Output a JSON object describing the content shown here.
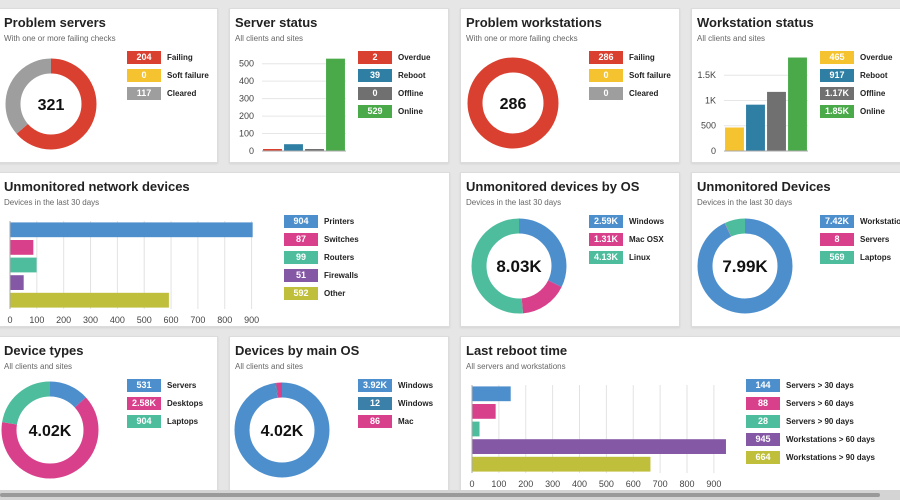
{
  "colors": {
    "red": "#d9402f",
    "yellow": "#f5c230",
    "gray": "#9e9e9e",
    "blue": "#4d8fcd",
    "green": "#4aaa4a",
    "teal": "#2f7fa5",
    "darkgray": "#707070",
    "pink": "#d9408c",
    "mint": "#4dbd9d",
    "purple": "#8558a5",
    "olive": "#bfbf3c",
    "steel": "#3a80a8"
  },
  "cards": {
    "problem_servers": {
      "title": "Problem servers",
      "subtitle": "With one or more failing checks",
      "center": "321",
      "legend": [
        {
          "value": "204",
          "label": "Failing"
        },
        {
          "value": "0",
          "label": "Soft failure"
        },
        {
          "value": "117",
          "label": "Cleared"
        }
      ]
    },
    "server_status": {
      "title": "Server status",
      "subtitle": "All clients and sites",
      "legend": [
        {
          "value": "2",
          "label": "Overdue"
        },
        {
          "value": "39",
          "label": "Reboot"
        },
        {
          "value": "0",
          "label": "Offline"
        },
        {
          "value": "529",
          "label": "Online"
        }
      ]
    },
    "problem_workstations": {
      "title": "Problem workstations",
      "subtitle": "With one or more failing checks",
      "center": "286",
      "legend": [
        {
          "value": "286",
          "label": "Failing"
        },
        {
          "value": "0",
          "label": "Soft failure"
        },
        {
          "value": "0",
          "label": "Cleared"
        }
      ]
    },
    "workstation_status": {
      "title": "Workstation status",
      "subtitle": "All clients and sites",
      "legend": [
        {
          "value": "465",
          "label": "Overdue"
        },
        {
          "value": "917",
          "label": "Reboot"
        },
        {
          "value": "1.17K",
          "label": "Offline"
        },
        {
          "value": "1.85K",
          "label": "Online"
        }
      ]
    },
    "unmonitored_network": {
      "title": "Unmonitored network devices",
      "subtitle": "Devices in the last 30 days",
      "legend": [
        {
          "value": "904",
          "label": "Printers"
        },
        {
          "value": "87",
          "label": "Switches"
        },
        {
          "value": "99",
          "label": "Routers"
        },
        {
          "value": "51",
          "label": "Firewalls"
        },
        {
          "value": "592",
          "label": "Other"
        }
      ]
    },
    "unmonitored_os": {
      "title": "Unmonitored devices by OS",
      "subtitle": "Devices in the last 30 days",
      "center": "8.03K",
      "legend": [
        {
          "value": "2.59K",
          "label": "Windows"
        },
        {
          "value": "1.31K",
          "label": "Mac OSX"
        },
        {
          "value": "4.13K",
          "label": "Linux"
        }
      ]
    },
    "unmonitored_devices": {
      "title": "Unmonitored Devices",
      "subtitle": "Devices in the last 30 days",
      "center": "7.99K",
      "legend": [
        {
          "value": "7.42K",
          "label": "Workstations"
        },
        {
          "value": "8",
          "label": "Servers"
        },
        {
          "value": "569",
          "label": "Laptops"
        }
      ]
    },
    "device_types": {
      "title": "Device types",
      "subtitle": "All clients and sites",
      "center": "4.02K",
      "legend": [
        {
          "value": "531",
          "label": "Servers"
        },
        {
          "value": "2.58K",
          "label": "Desktops"
        },
        {
          "value": "904",
          "label": "Laptops"
        }
      ]
    },
    "devices_main_os": {
      "title": "Devices by main OS",
      "subtitle": "All clients and sites",
      "center": "4.02K",
      "legend": [
        {
          "value": "3.92K",
          "label": "Windows"
        },
        {
          "value": "12",
          "label": "Windows"
        },
        {
          "value": "86",
          "label": "Mac"
        }
      ]
    },
    "last_reboot": {
      "title": "Last reboot time",
      "subtitle": "All servers and workstations",
      "legend": [
        {
          "value": "144",
          "label": "Servers > 30 days"
        },
        {
          "value": "88",
          "label": "Servers > 60 days"
        },
        {
          "value": "28",
          "label": "Servers > 90 days"
        },
        {
          "value": "945",
          "label": "Workstations > 60 days"
        },
        {
          "value": "664",
          "label": "Workstations > 90 days"
        }
      ]
    }
  },
  "chart_data": [
    {
      "id": "problem_servers",
      "type": "pie",
      "categories": [
        "Failing",
        "Soft failure",
        "Cleared"
      ],
      "values": [
        204,
        0,
        117
      ],
      "colors": [
        "red",
        "yellow",
        "gray"
      ]
    },
    {
      "id": "server_status",
      "type": "bar",
      "categories": [
        "Overdue",
        "Reboot",
        "Offline",
        "Online"
      ],
      "values": [
        2,
        39,
        0,
        529
      ],
      "colors": [
        "red",
        "teal",
        "darkgray",
        "green"
      ],
      "ylim": [
        0,
        550
      ],
      "yticks": [
        0,
        100,
        200,
        300,
        400,
        500
      ],
      "ytick_labels": [
        "0",
        "100",
        "200",
        "300",
        "400",
        "500"
      ]
    },
    {
      "id": "problem_workstations",
      "type": "pie",
      "categories": [
        "Failing",
        "Soft failure",
        "Cleared"
      ],
      "values": [
        286,
        0,
        0
      ],
      "colors": [
        "red",
        "yellow",
        "gray"
      ]
    },
    {
      "id": "workstation_status",
      "type": "bar",
      "categories": [
        "Overdue",
        "Reboot",
        "Offline",
        "Online"
      ],
      "values": [
        465,
        917,
        1170,
        1850
      ],
      "colors": [
        "yellow",
        "teal",
        "darkgray",
        "green"
      ],
      "ylim": [
        0,
        1900
      ],
      "yticks": [
        0,
        500,
        1000,
        1500
      ],
      "ytick_labels": [
        "0",
        "500",
        "1K",
        "1.5K"
      ]
    },
    {
      "id": "unmonitored_network",
      "type": "hbar",
      "categories": [
        "Printers",
        "Switches",
        "Routers",
        "Firewalls",
        "Other"
      ],
      "values": [
        904,
        87,
        99,
        51,
        592
      ],
      "colors": [
        "blue",
        "pink",
        "mint",
        "purple",
        "olive"
      ],
      "xlim": [
        0,
        950
      ],
      "xticks": [
        0,
        100,
        200,
        300,
        400,
        500,
        600,
        700,
        800,
        900
      ],
      "xtick_labels": [
        "0",
        "100",
        "200",
        "300",
        "400",
        "500",
        "600",
        "700",
        "800",
        "900"
      ]
    },
    {
      "id": "unmonitored_os",
      "type": "pie",
      "categories": [
        "Windows",
        "Mac OSX",
        "Linux"
      ],
      "values": [
        2590,
        1310,
        4130
      ],
      "colors": [
        "blue",
        "pink",
        "mint"
      ]
    },
    {
      "id": "unmonitored_devices",
      "type": "pie",
      "categories": [
        "Workstations",
        "Servers",
        "Laptops"
      ],
      "values": [
        7420,
        8,
        569
      ],
      "colors": [
        "blue",
        "pink",
        "mint"
      ]
    },
    {
      "id": "device_types",
      "type": "pie",
      "categories": [
        "Servers",
        "Desktops",
        "Laptops"
      ],
      "values": [
        531,
        2580,
        904
      ],
      "colors": [
        "blue",
        "pink",
        "mint"
      ]
    },
    {
      "id": "devices_main_os",
      "type": "pie",
      "categories": [
        "Windows",
        "Windows",
        "Mac"
      ],
      "values": [
        3920,
        12,
        86
      ],
      "colors": [
        "blue",
        "steel",
        "pink"
      ]
    },
    {
      "id": "last_reboot",
      "type": "hbar",
      "categories": [
        "Servers > 30 days",
        "Servers > 60 days",
        "Servers > 90 days",
        "Workstations > 60 days",
        "Workstations > 90 days"
      ],
      "values": [
        144,
        88,
        28,
        945,
        664
      ],
      "colors": [
        "blue",
        "pink",
        "mint",
        "purple",
        "olive"
      ],
      "xlim": [
        0,
        960
      ],
      "xticks": [
        0,
        100,
        200,
        300,
        400,
        500,
        600,
        700,
        800,
        900
      ],
      "xtick_labels": [
        "0",
        "100",
        "200",
        "300",
        "400",
        "500",
        "600",
        "700",
        "800",
        "900"
      ]
    }
  ]
}
